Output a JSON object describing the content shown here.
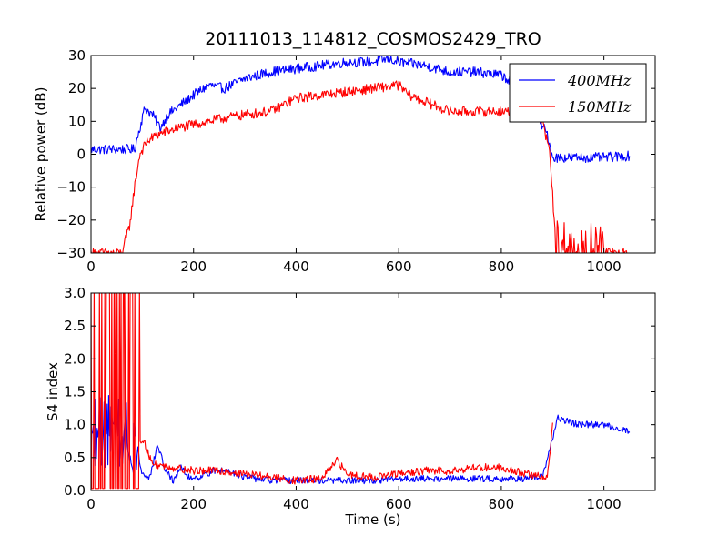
{
  "chart_data": [
    {
      "type": "line",
      "title": "20111013_114812_COSMOS2429_TRO",
      "xlabel": "",
      "ylabel": "Relative power (dB)",
      "xlim": [
        0,
        1100
      ],
      "ylim": [
        -30,
        30
      ],
      "xticks": [
        "0",
        "200",
        "400",
        "600",
        "800",
        "1000"
      ],
      "yticks": [
        "−30",
        "−20",
        "−10",
        "0",
        "10",
        "20",
        "30"
      ],
      "legend": {
        "location": "top-right",
        "entries": [
          "400MHz",
          "150MHz"
        ]
      },
      "series": [
        {
          "name": "400MHz",
          "color": "#0000ff",
          "noise": 1.5,
          "x": [
            0,
            85,
            95,
            105,
            120,
            135,
            150,
            175,
            200,
            230,
            260,
            300,
            350,
            400,
            450,
            500,
            550,
            580,
            600,
            650,
            700,
            750,
            800,
            830,
            860,
            890,
            900,
            950,
            1000,
            1050
          ],
          "y": [
            1.5,
            1.5,
            8,
            14,
            12,
            8,
            12,
            15,
            18,
            21,
            20,
            23,
            25,
            26,
            27,
            28,
            28,
            29,
            28,
            27,
            25,
            25,
            24,
            21,
            14,
            6,
            -1,
            -1,
            -1,
            -0.5
          ]
        },
        {
          "name": "150MHz",
          "color": "#ff0000",
          "noise": 1.5,
          "x": [
            0,
            60,
            75,
            85,
            95,
            110,
            130,
            150,
            170,
            200,
            230,
            260,
            300,
            350,
            400,
            450,
            500,
            550,
            600,
            620,
            650,
            700,
            750,
            800,
            850,
            880,
            895,
            905,
            930,
            970,
            1000,
            1050
          ],
          "y": [
            -30,
            -30,
            -22,
            -10,
            0,
            4,
            6,
            7,
            8,
            9,
            10,
            11,
            12,
            13,
            17,
            18,
            19,
            20,
            21,
            18,
            16,
            13,
            13,
            13,
            13,
            10,
            0,
            -25,
            -28,
            -26,
            -30,
            -30
          ]
        }
      ]
    },
    {
      "type": "line",
      "title": "",
      "xlabel": "Time (s)",
      "ylabel": "S4 index",
      "xlim": [
        0,
        1100
      ],
      "ylim": [
        0,
        3
      ],
      "xticks": [
        "0",
        "200",
        "400",
        "600",
        "800",
        "1000"
      ],
      "yticks": [
        "0.0",
        "0.5",
        "1.0",
        "1.5",
        "2.0",
        "2.5",
        "3.0"
      ],
      "series": [
        {
          "name": "400MHz",
          "color": "#0000ff",
          "noise": 0.05,
          "x": [
            0,
            20,
            50,
            80,
            100,
            115,
            130,
            145,
            160,
            175,
            190,
            210,
            240,
            270,
            300,
            350,
            400,
            450,
            500,
            550,
            600,
            650,
            700,
            750,
            800,
            850,
            880,
            900,
            910,
            950,
            1000,
            1050
          ],
          "y": [
            0.9,
            0.9,
            0.9,
            0.9,
            0.25,
            0.2,
            0.7,
            0.3,
            0.15,
            0.35,
            0.2,
            0.2,
            0.3,
            0.3,
            0.2,
            0.15,
            0.15,
            0.15,
            0.15,
            0.15,
            0.18,
            0.18,
            0.18,
            0.18,
            0.18,
            0.18,
            0.2,
            0.8,
            1.1,
            1.0,
            1.0,
            0.9
          ]
        },
        {
          "name": "150MHz",
          "color": "#ff0000",
          "noise": 0.06,
          "x": [
            0,
            100,
            120,
            160,
            200,
            250,
            300,
            350,
            400,
            450,
            480,
            500,
            550,
            600,
            650,
            700,
            750,
            800,
            850,
            890,
            900
          ],
          "y": [
            0.0,
            0.8,
            0.4,
            0.35,
            0.3,
            0.3,
            0.25,
            0.2,
            0.15,
            0.18,
            0.45,
            0.25,
            0.2,
            0.25,
            0.3,
            0.3,
            0.35,
            0.35,
            0.25,
            0.2,
            1.0
          ]
        }
      ]
    }
  ]
}
